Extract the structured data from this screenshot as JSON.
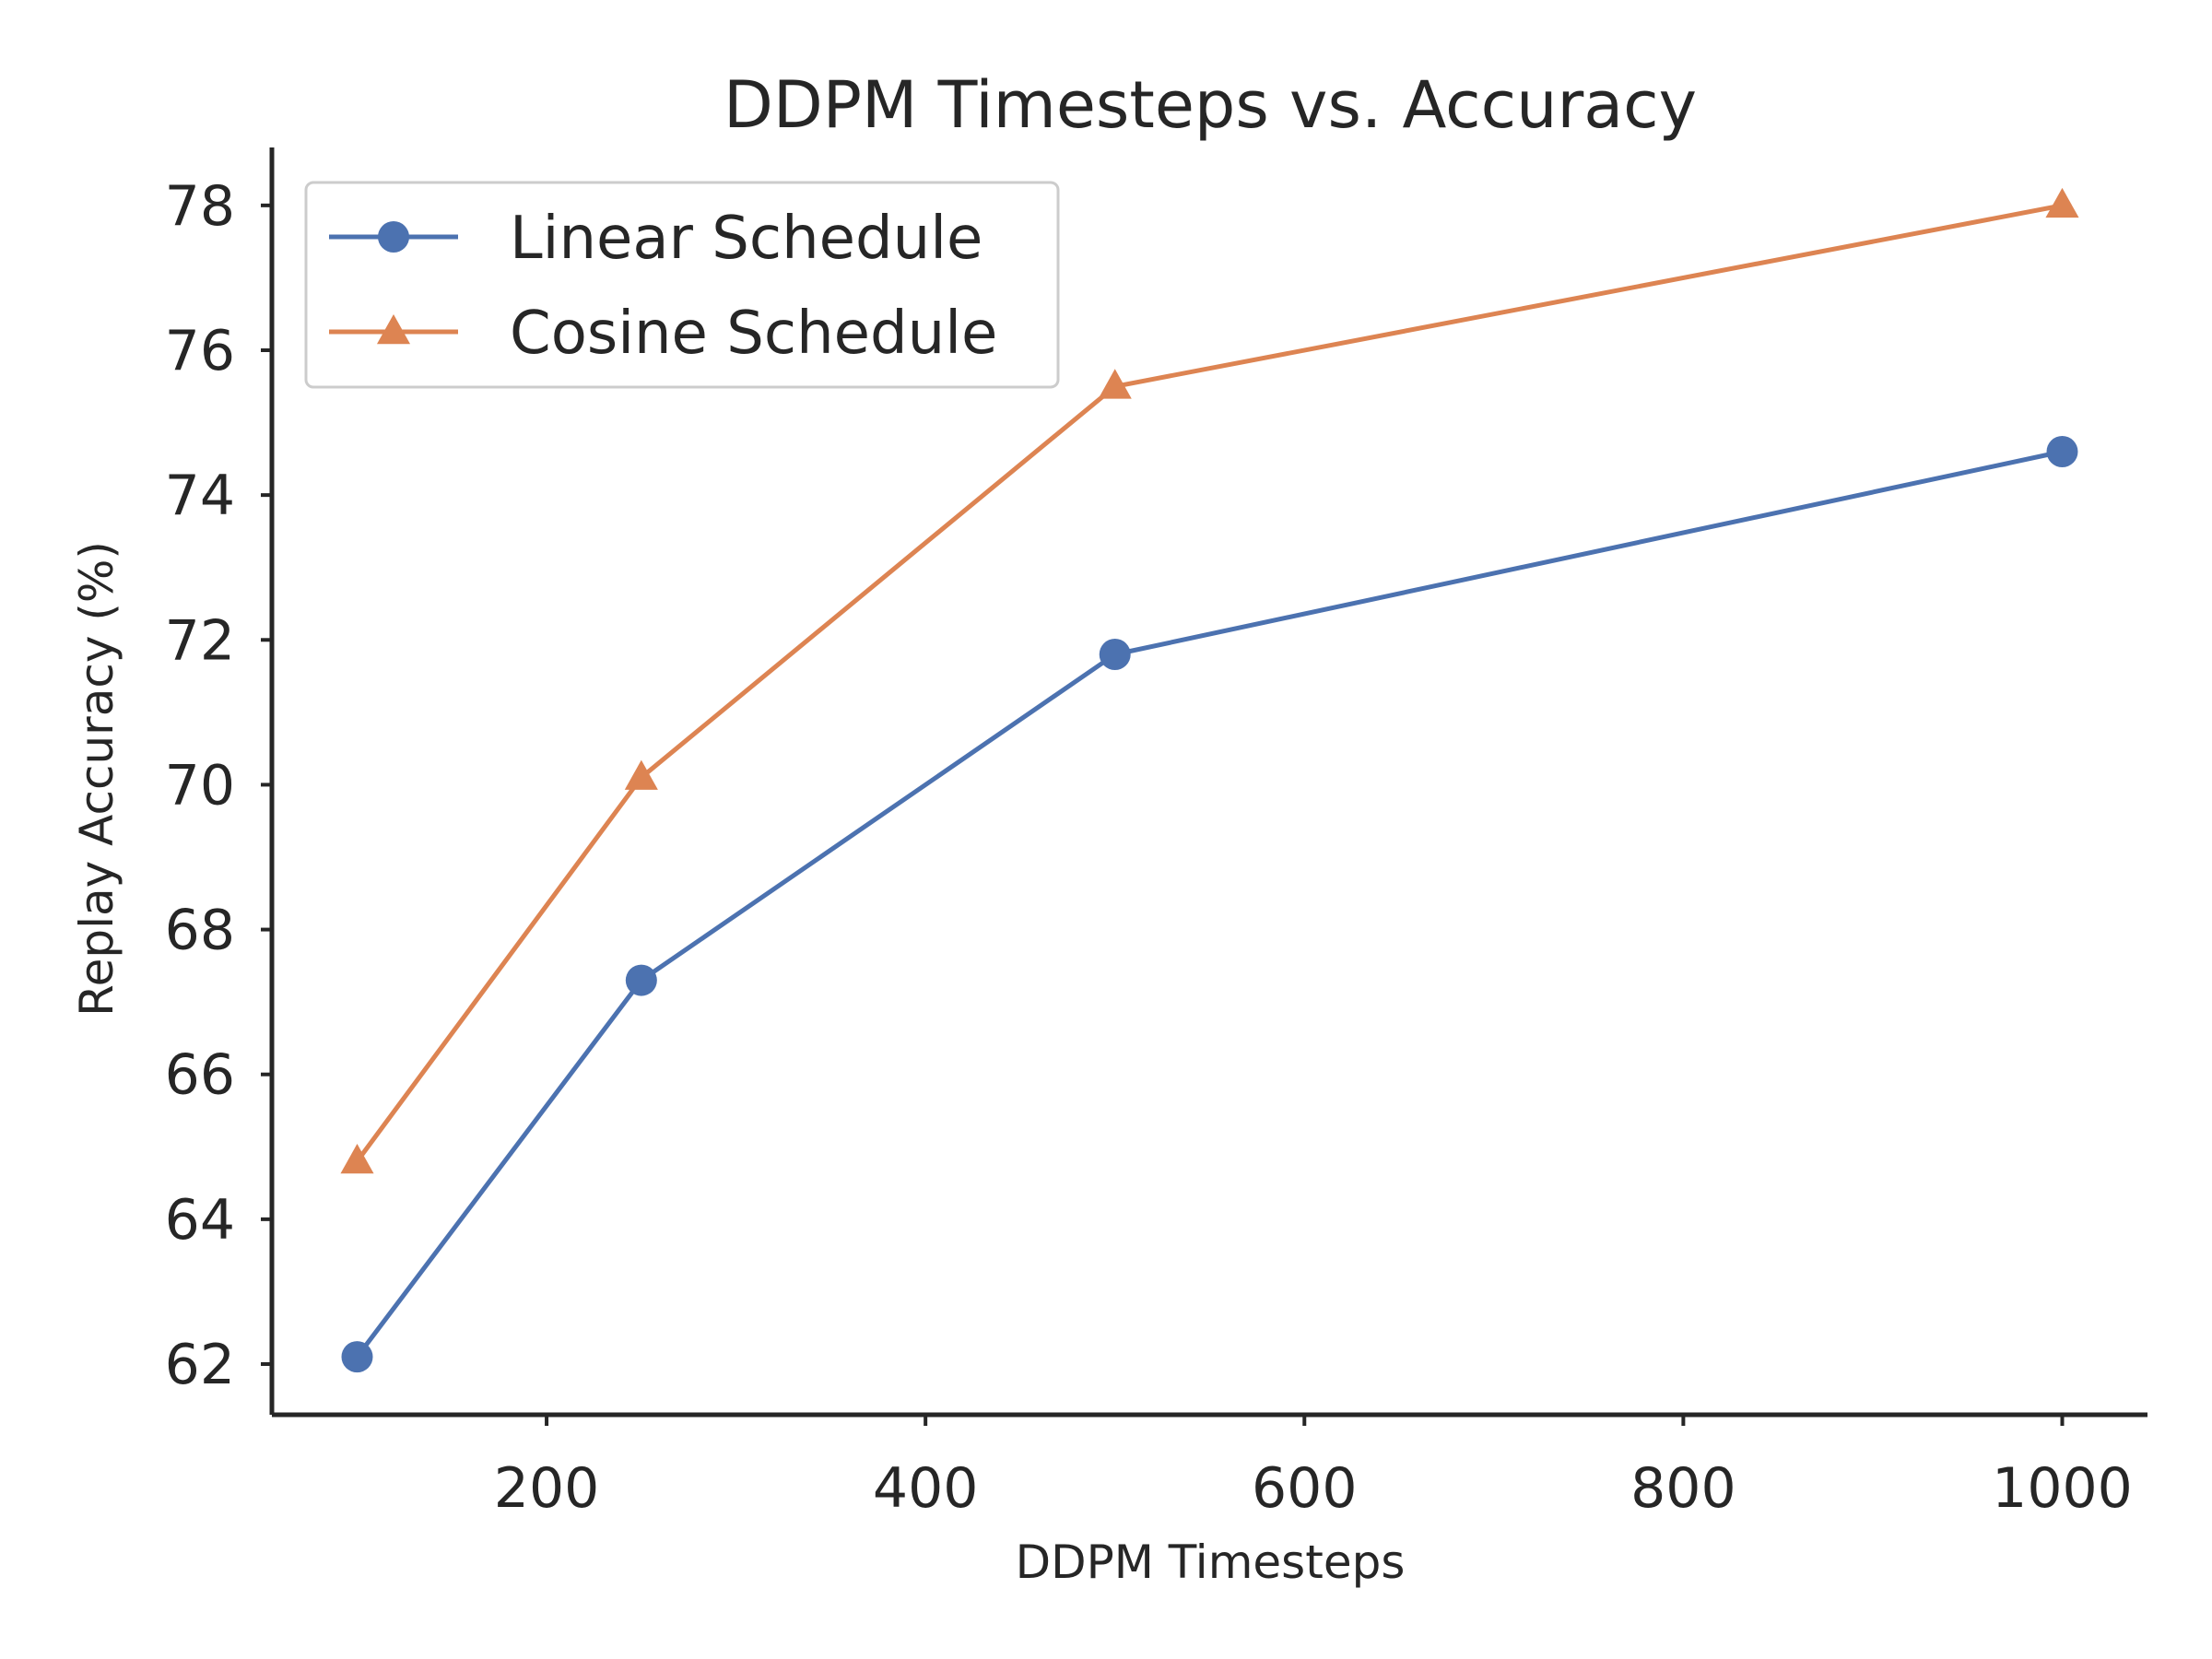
{
  "chart_data": {
    "type": "line",
    "title": "DDPM Timesteps vs. Accuracy",
    "xlabel": "DDPM Timesteps",
    "ylabel": "Replay Accuracy (%)",
    "xlim": [
      55,
      1045
    ],
    "ylim": [
      61.3,
      78.8
    ],
    "xticks": [
      200,
      400,
      600,
      800,
      1000
    ],
    "yticks": [
      62,
      64,
      66,
      68,
      70,
      72,
      74,
      76,
      78
    ],
    "grid": false,
    "legend_position": "top-left",
    "x": [
      100,
      250,
      500,
      1000
    ],
    "series": [
      {
        "name": "Linear Schedule",
        "values": [
          62.1,
          67.3,
          71.8,
          74.6
        ],
        "color": "#4c72b0",
        "marker": "circle"
      },
      {
        "name": "Cosine Schedule",
        "values": [
          64.8,
          70.1,
          75.5,
          78.0
        ],
        "color": "#dd8452",
        "marker": "triangle"
      }
    ]
  }
}
